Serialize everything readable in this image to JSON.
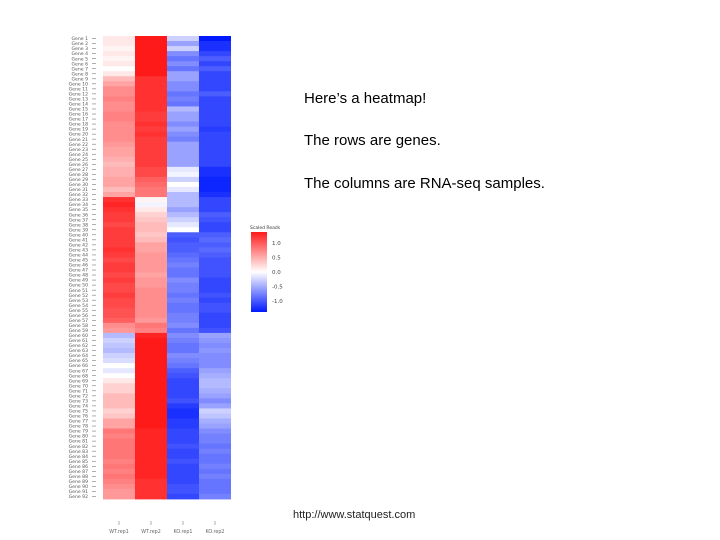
{
  "slide": {
    "notes": [
      "Here’s a heatmap!",
      "The rows are genes.",
      "The columns are RNA-seq samples."
    ],
    "url": "http://www.statquest.com"
  },
  "chart_data": {
    "type": "heatmap",
    "title": "",
    "colors": {
      "low": "#0019ff",
      "mid": "#ffffff",
      "high": "#ff1a1a"
    },
    "legend": {
      "title": "Scaled Reads",
      "ticks": [
        "1.0",
        "0.5",
        "0.0",
        "-0.5",
        "-1.0"
      ],
      "range": [
        -1.0,
        1.0
      ],
      "placement": "right"
    },
    "columns": [
      "WT.rep1",
      "WT.rep2",
      "KO.rep1",
      "KO.rep2"
    ],
    "rows": [
      "Gene 1",
      "Gene 2",
      "Gene 3",
      "Gene 4",
      "Gene 5",
      "Gene 6",
      "Gene 7",
      "Gene 8",
      "Gene 9",
      "Gene 10",
      "Gene 11",
      "Gene 12",
      "Gene 13",
      "Gene 14",
      "Gene 15",
      "Gene 16",
      "Gene 17",
      "Gene 18",
      "Gene 19",
      "Gene 20",
      "Gene 21",
      "Gene 22",
      "Gene 23",
      "Gene 24",
      "Gene 25",
      "Gene 26",
      "Gene 27",
      "Gene 28",
      "Gene 29",
      "Gene 30",
      "Gene 31",
      "Gene 32",
      "Gene 33",
      "Gene 34",
      "Gene 35",
      "Gene 36",
      "Gene 37",
      "Gene 38",
      "Gene 39",
      "Gene 40",
      "Gene 41",
      "Gene 42",
      "Gene 43",
      "Gene 44",
      "Gene 45",
      "Gene 46",
      "Gene 47",
      "Gene 48",
      "Gene 49",
      "Gene 50",
      "Gene 51",
      "Gene 52",
      "Gene 53",
      "Gene 54",
      "Gene 55",
      "Gene 56",
      "Gene 57",
      "Gene 58",
      "Gene 59",
      "Gene 60",
      "Gene 61",
      "Gene 62",
      "Gene 63",
      "Gene 64",
      "Gene 65",
      "Gene 66",
      "Gene 67",
      "Gene 68",
      "Gene 69",
      "Gene 70",
      "Gene 71",
      "Gene 72",
      "Gene 73",
      "Gene 74",
      "Gene 75",
      "Gene 76",
      "Gene 77",
      "Gene 78",
      "Gene 79",
      "Gene 80",
      "Gene 81",
      "Gene 82",
      "Gene 83",
      "Gene 84",
      "Gene 85",
      "Gene 86",
      "Gene 87",
      "Gene 88",
      "Gene 89",
      "Gene 90",
      "Gene 91",
      "Gene 92"
    ],
    "values": [
      [
        0.1,
        1.0,
        -0.2,
        -1.0
      ],
      [
        0.1,
        1.0,
        -0.4,
        -0.9
      ],
      [
        0.05,
        1.0,
        -0.2,
        -0.9
      ],
      [
        0.1,
        1.0,
        -0.5,
        -0.8
      ],
      [
        0.05,
        1.0,
        -0.6,
        -0.7
      ],
      [
        0.1,
        1.0,
        -0.5,
        -0.8
      ],
      [
        0.0,
        1.0,
        -0.6,
        -0.7
      ],
      [
        0.1,
        1.0,
        -0.4,
        -0.8
      ],
      [
        0.3,
        0.9,
        -0.4,
        -0.8
      ],
      [
        0.4,
        0.9,
        -0.5,
        -0.8
      ],
      [
        0.5,
        0.9,
        -0.5,
        -0.8
      ],
      [
        0.5,
        0.9,
        -0.6,
        -0.7
      ],
      [
        0.55,
        0.9,
        -0.55,
        -0.8
      ],
      [
        0.5,
        0.9,
        -0.6,
        -0.8
      ],
      [
        0.5,
        0.9,
        -0.3,
        -0.8
      ],
      [
        0.55,
        0.85,
        -0.4,
        -0.8
      ],
      [
        0.55,
        0.85,
        -0.4,
        -0.8
      ],
      [
        0.5,
        0.9,
        -0.5,
        -0.8
      ],
      [
        0.5,
        0.85,
        -0.4,
        -0.85
      ],
      [
        0.5,
        0.9,
        -0.5,
        -0.8
      ],
      [
        0.5,
        0.85,
        -0.55,
        -0.8
      ],
      [
        0.45,
        0.85,
        -0.4,
        -0.8
      ],
      [
        0.4,
        0.85,
        -0.4,
        -0.8
      ],
      [
        0.4,
        0.85,
        -0.4,
        -0.8
      ],
      [
        0.35,
        0.85,
        -0.4,
        -0.8
      ],
      [
        0.3,
        0.85,
        -0.4,
        -0.8
      ],
      [
        0.35,
        0.8,
        -0.1,
        -0.9
      ],
      [
        0.35,
        0.8,
        -0.05,
        -0.9
      ],
      [
        0.4,
        0.7,
        -0.2,
        -0.95
      ],
      [
        0.4,
        0.65,
        0.0,
        -0.95
      ],
      [
        0.3,
        0.6,
        -0.1,
        -0.95
      ],
      [
        0.4,
        0.6,
        -0.3,
        -0.9
      ],
      [
        0.9,
        0.05,
        -0.3,
        -0.8
      ],
      [
        0.95,
        -0.05,
        -0.3,
        -0.8
      ],
      [
        0.9,
        0.1,
        -0.4,
        -0.8
      ],
      [
        0.85,
        0.2,
        -0.3,
        -0.7
      ],
      [
        0.85,
        0.25,
        -0.2,
        -0.75
      ],
      [
        0.8,
        0.3,
        -0.1,
        -0.8
      ],
      [
        0.85,
        0.3,
        0.0,
        -0.8
      ],
      [
        0.85,
        0.25,
        -0.7,
        -0.7
      ],
      [
        0.85,
        0.3,
        -0.75,
        -0.65
      ],
      [
        0.85,
        0.4,
        -0.7,
        -0.7
      ],
      [
        0.9,
        0.4,
        -0.7,
        -0.65
      ],
      [
        0.85,
        0.45,
        -0.65,
        -0.7
      ],
      [
        0.8,
        0.45,
        -0.6,
        -0.75
      ],
      [
        0.85,
        0.45,
        -0.55,
        -0.75
      ],
      [
        0.85,
        0.45,
        -0.6,
        -0.75
      ],
      [
        0.8,
        0.4,
        -0.6,
        -0.75
      ],
      [
        0.85,
        0.45,
        -0.5,
        -0.8
      ],
      [
        0.8,
        0.45,
        -0.55,
        -0.8
      ],
      [
        0.8,
        0.5,
        -0.55,
        -0.8
      ],
      [
        0.85,
        0.5,
        -0.6,
        -0.75
      ],
      [
        0.8,
        0.5,
        -0.55,
        -0.8
      ],
      [
        0.8,
        0.5,
        -0.6,
        -0.75
      ],
      [
        0.75,
        0.5,
        -0.6,
        -0.75
      ],
      [
        0.75,
        0.5,
        -0.55,
        -0.8
      ],
      [
        0.7,
        0.45,
        -0.55,
        -0.8
      ],
      [
        0.5,
        0.6,
        -0.5,
        -0.8
      ],
      [
        0.45,
        0.55,
        -0.6,
        -0.75
      ],
      [
        -0.3,
        0.95,
        -0.5,
        -0.4
      ],
      [
        -0.2,
        1.0,
        -0.55,
        -0.45
      ],
      [
        -0.25,
        1.0,
        -0.6,
        -0.5
      ],
      [
        -0.3,
        1.0,
        -0.6,
        -0.45
      ],
      [
        -0.2,
        1.0,
        -0.5,
        -0.5
      ],
      [
        -0.15,
        1.0,
        -0.55,
        -0.5
      ],
      [
        0.0,
        1.0,
        -0.6,
        -0.5
      ],
      [
        -0.1,
        1.0,
        -0.7,
        -0.4
      ],
      [
        0.0,
        1.0,
        -0.75,
        -0.35
      ],
      [
        0.1,
        1.0,
        -0.8,
        -0.3
      ],
      [
        0.2,
        1.0,
        -0.8,
        -0.3
      ],
      [
        0.2,
        1.0,
        -0.8,
        -0.35
      ],
      [
        0.3,
        1.0,
        -0.8,
        -0.4
      ],
      [
        0.3,
        1.0,
        -0.75,
        -0.5
      ],
      [
        0.3,
        1.0,
        -0.85,
        -0.4
      ],
      [
        0.2,
        1.0,
        -0.9,
        -0.2
      ],
      [
        0.25,
        1.0,
        -0.9,
        -0.25
      ],
      [
        0.4,
        1.0,
        -0.85,
        -0.35
      ],
      [
        0.4,
        1.0,
        -0.85,
        -0.4
      ],
      [
        0.6,
        0.95,
        -0.8,
        -0.5
      ],
      [
        0.55,
        0.95,
        -0.8,
        -0.55
      ],
      [
        0.6,
        0.95,
        -0.8,
        -0.55
      ],
      [
        0.6,
        0.95,
        -0.75,
        -0.6
      ],
      [
        0.6,
        0.95,
        -0.8,
        -0.55
      ],
      [
        0.6,
        0.95,
        -0.8,
        -0.6
      ],
      [
        0.55,
        0.95,
        -0.75,
        -0.6
      ],
      [
        0.6,
        0.95,
        -0.8,
        -0.55
      ],
      [
        0.55,
        0.95,
        -0.8,
        -0.6
      ],
      [
        0.6,
        0.95,
        -0.8,
        -0.55
      ],
      [
        0.55,
        0.9,
        -0.8,
        -0.6
      ],
      [
        0.5,
        0.9,
        -0.75,
        -0.6
      ],
      [
        0.45,
        0.9,
        -0.75,
        -0.6
      ],
      [
        0.45,
        0.9,
        -0.8,
        -0.55
      ]
    ]
  }
}
